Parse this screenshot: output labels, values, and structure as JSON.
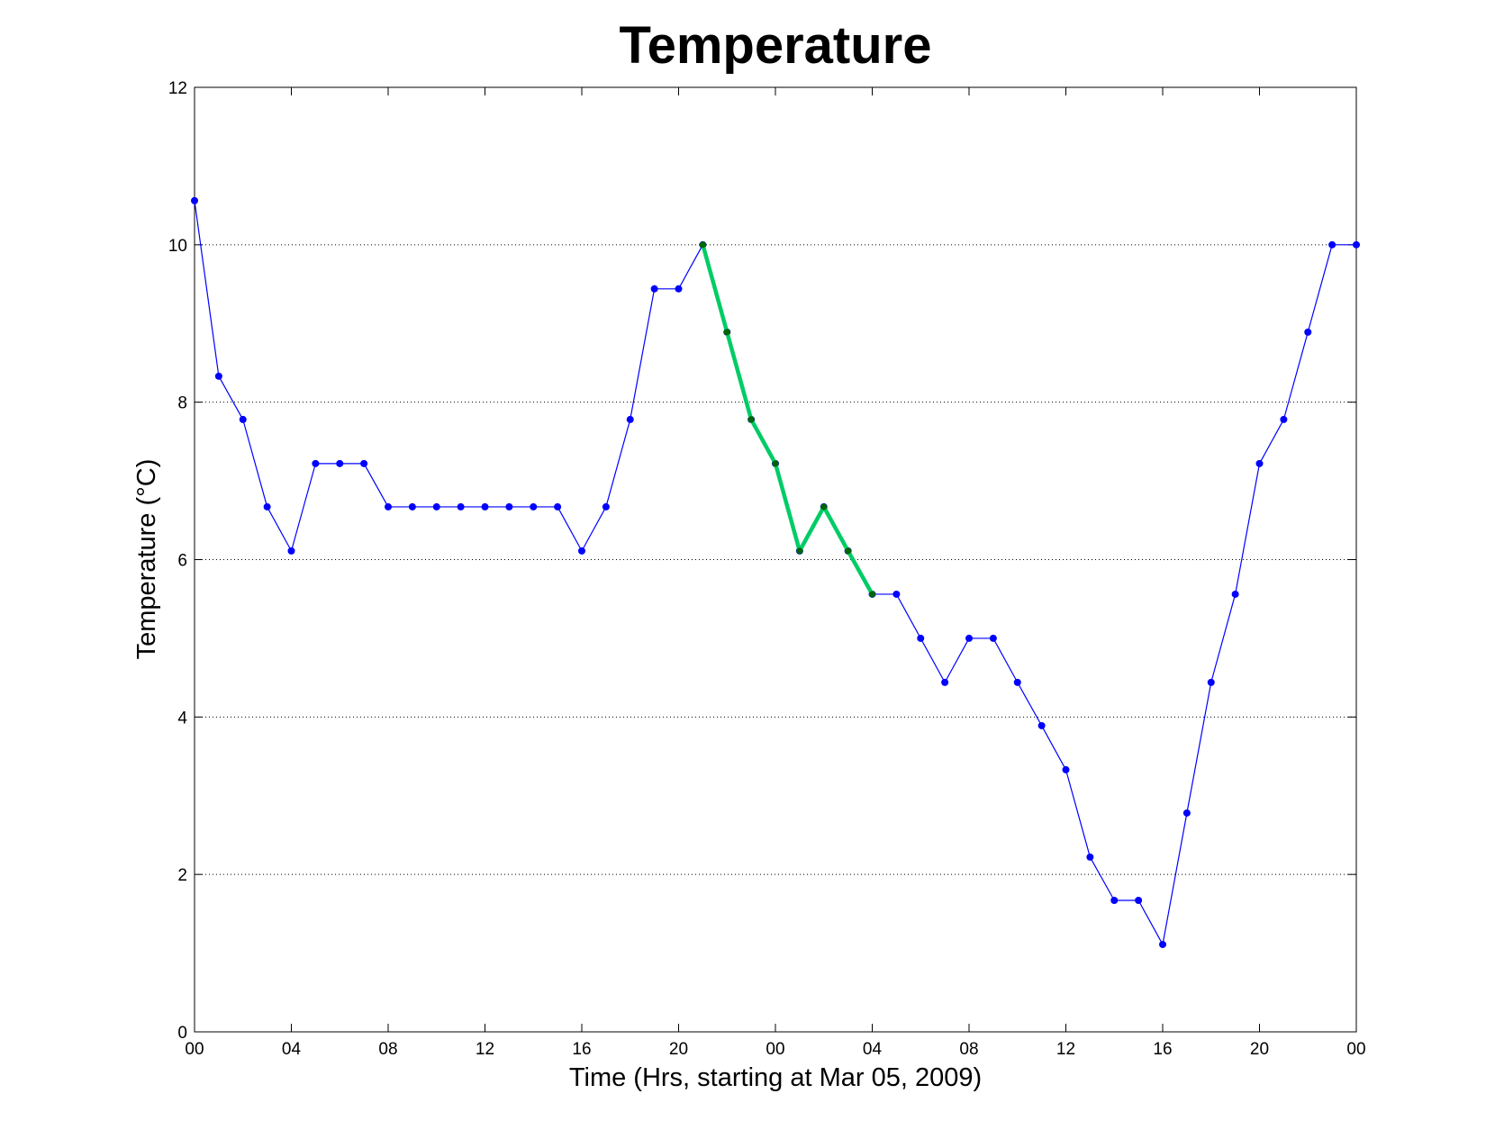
{
  "chart_data": {
    "type": "line",
    "title": "Temperature",
    "xlabel": "Time (Hrs, starting at Mar 05, 2009)",
    "ylabel": "Temperature (°C)",
    "x_unit": "hours",
    "xlim": [
      0,
      48
    ],
    "ylim": [
      0,
      12
    ],
    "xticks": [
      0,
      4,
      8,
      12,
      16,
      20,
      24,
      28,
      32,
      36,
      40,
      44,
      48
    ],
    "xtick_labels": [
      "00",
      "04",
      "08",
      "12",
      "16",
      "20",
      "00",
      "04",
      "08",
      "12",
      "16",
      "20",
      "00"
    ],
    "yticks": [
      0,
      2,
      4,
      6,
      8,
      10,
      12
    ],
    "ytick_labels": [
      "0",
      "2",
      "4",
      "6",
      "8",
      "10",
      "12"
    ],
    "grid": {
      "y": true,
      "x": false,
      "style": "dotted"
    },
    "series": [
      {
        "color": "#0000ff",
        "marker": "dot",
        "x": [
          0,
          1,
          2,
          3,
          4,
          5,
          6,
          7,
          8,
          9,
          10,
          11,
          12,
          13,
          14,
          15,
          16,
          17,
          18,
          19,
          20,
          21,
          22,
          23,
          24,
          25,
          26,
          27,
          28,
          29,
          30,
          31,
          32,
          33,
          34,
          35,
          36,
          37,
          38,
          39,
          40,
          41,
          42,
          43,
          44,
          45,
          46,
          47,
          48
        ],
        "values": [
          10.56,
          8.33,
          7.78,
          6.67,
          6.11,
          7.22,
          7.22,
          7.22,
          6.67,
          6.67,
          6.67,
          6.67,
          6.67,
          6.67,
          6.67,
          6.67,
          6.11,
          6.67,
          7.78,
          9.44,
          9.44,
          10.0,
          8.89,
          7.78,
          7.22,
          6.11,
          6.67,
          6.11,
          5.56,
          5.56,
          5.0,
          4.44,
          5.0,
          5.0,
          4.44,
          3.89,
          3.33,
          2.22,
          1.67,
          1.67,
          1.11,
          2.78,
          4.44,
          5.56,
          7.22,
          7.78,
          8.89,
          10.0,
          10.0
        ]
      },
      {
        "color": "#00cc66",
        "marker_color": "#006600",
        "highlight": true,
        "x": [
          21,
          22,
          23,
          24,
          25,
          26,
          27,
          28
        ],
        "values": [
          10.0,
          8.89,
          7.78,
          7.22,
          6.11,
          6.67,
          6.11,
          5.56
        ]
      }
    ]
  }
}
